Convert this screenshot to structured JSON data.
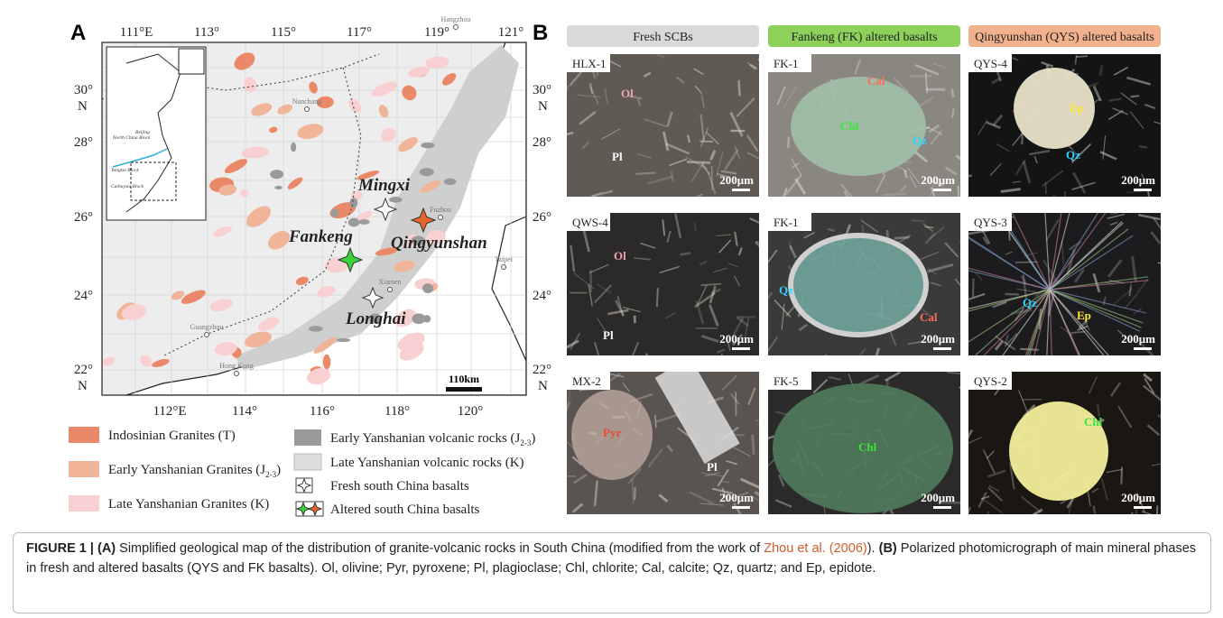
{
  "panel_a": {
    "label": "A",
    "top_ticks": [
      "111°E",
      "113°",
      "115°",
      "117°",
      "119°",
      "121°"
    ],
    "bottom_ticks": [
      "112°E",
      "114°",
      "116°",
      "118°",
      "120°"
    ],
    "lat_ticks": [
      "30°",
      "28°",
      "26°",
      "24°",
      "22°"
    ],
    "hemisphere": "N",
    "sites": [
      "Mingxi",
      "Qingyunshan",
      "Fankeng",
      "Longhai"
    ],
    "cities": [
      "Hangzhou",
      "Nanchang",
      "Fuzhou",
      "Xiamen",
      "Taipei",
      "Guangzhou",
      "Hong Kong"
    ],
    "inset_labels": [
      "Beijing",
      "North China Block",
      "Yangtze Block",
      "Cathaysia Block"
    ],
    "scale_bar": "110km",
    "legend": [
      {
        "text": "Indosinian Granites (T)"
      },
      {
        "text": "Early Yanshanian Granites (J",
        "sub": "2-3",
        "tail": ")"
      },
      {
        "text": "Late Yanshanian Granites (K)"
      },
      {
        "text": "Early Yanshanian volcanic rocks (J",
        "sub": "2-3",
        "tail": ")"
      },
      {
        "text": "Late Yanshanian volcanic rocks (K)"
      },
      {
        "text": "Fresh south China basalts"
      },
      {
        "text": "Altered south China basalts"
      }
    ]
  },
  "panel_b": {
    "label": "B",
    "columns": [
      {
        "header": "Fresh SCBs",
        "panels": [
          {
            "sample": "HLX-1",
            "minerals": [
              "Ol",
              "Pl"
            ],
            "scale": "200μm"
          },
          {
            "sample": "QWS-4",
            "minerals": [
              "Ol",
              "Pl"
            ],
            "scale": "200μm"
          },
          {
            "sample": "MX-2",
            "minerals": [
              "Pyr",
              "Pl"
            ],
            "scale": "200μm"
          }
        ]
      },
      {
        "header": "Fankeng (FK) altered basalts",
        "panels": [
          {
            "sample": "FK-1",
            "minerals": [
              "Cal",
              "Chl",
              "Qz"
            ],
            "scale": "200μm"
          },
          {
            "sample": "FK-1",
            "minerals": [
              "Qz",
              "Cal"
            ],
            "scale": "200μm"
          },
          {
            "sample": "FK-5",
            "minerals": [
              "Chl"
            ],
            "scale": "200μm"
          }
        ]
      },
      {
        "header": "Qingyunshan (QYS) altered basalts",
        "panels": [
          {
            "sample": "QYS-4",
            "minerals": [
              "Ep",
              "Qz"
            ],
            "scale": "200μm"
          },
          {
            "sample": "QYS-3",
            "minerals": [
              "Qz",
              "Ep"
            ],
            "scale": "200μm"
          },
          {
            "sample": "QYS-2",
            "minerals": [
              "Chl"
            ],
            "scale": "200μm"
          }
        ]
      }
    ]
  },
  "caption": [
    {
      "text": "FIGURE 1 | ",
      "style": "bold"
    },
    {
      "text": "(A)",
      "style": "bold"
    },
    {
      "text": " Simplified geological map of the distribution of granite-volcanic rocks in South China (modified from the work of ",
      "style": "plain"
    },
    {
      "text": "Zhou et al. (2006)",
      "style": "link"
    },
    {
      "text": "). ",
      "style": "plain"
    },
    {
      "text": "(B)",
      "style": "bold"
    },
    {
      "text": " Polarized photomicrograph of main mineral phases in fresh and altered basalts (QYS and FK basalts). Ol, olivine; Pyr, pyroxene; Pl, plagioclase; Chl, chlorite; Cal, calcite; Qz, quartz; and Ep, epidote.",
      "style": "plain"
    }
  ]
}
